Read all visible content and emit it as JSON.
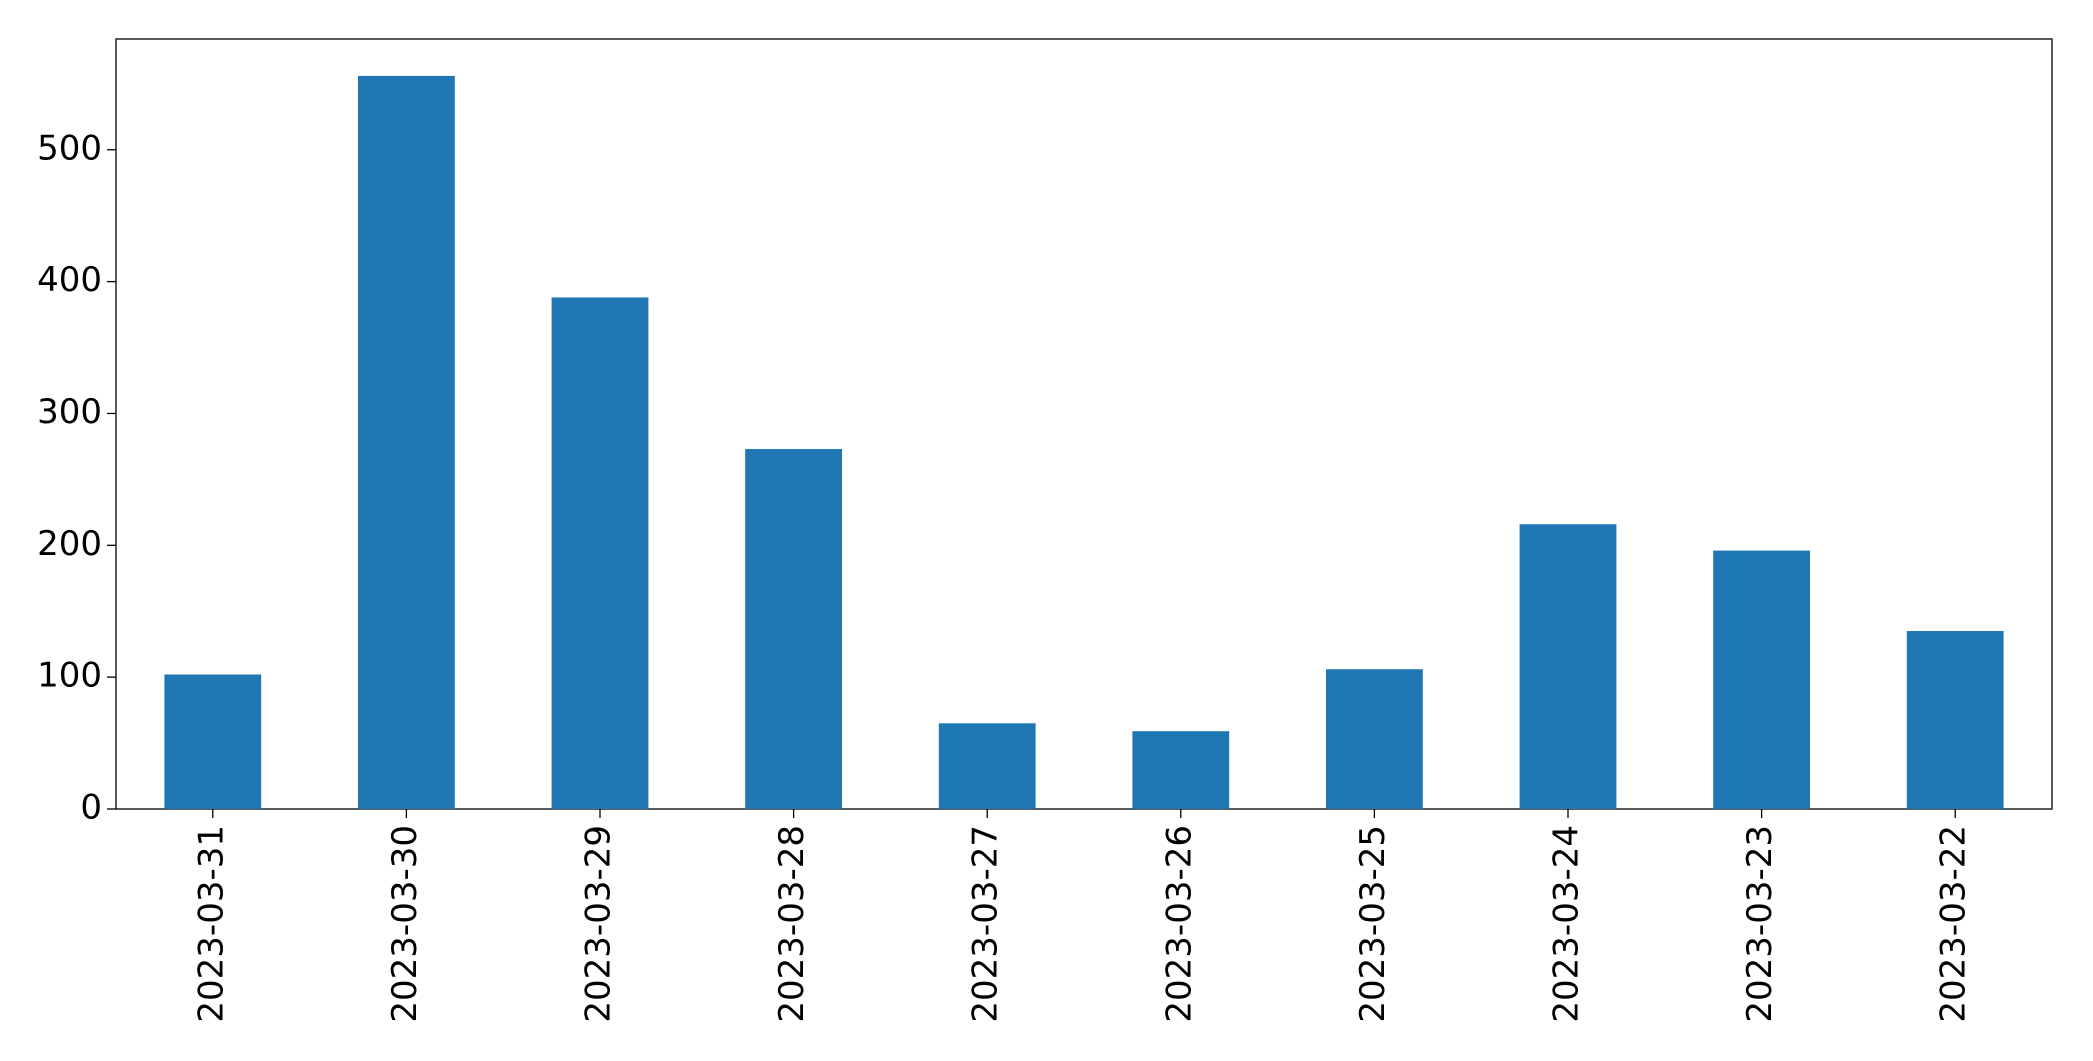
{
  "chart_data": {
    "type": "bar",
    "categories": [
      "2023-03-31",
      "2023-03-30",
      "2023-03-29",
      "2023-03-28",
      "2023-03-27",
      "2023-03-26",
      "2023-03-25",
      "2023-03-24",
      "2023-03-23",
      "2023-03-22"
    ],
    "values": [
      102,
      556,
      388,
      273,
      65,
      59,
      106,
      216,
      196,
      135
    ],
    "color": "#1f77b4",
    "ylim": [
      0,
      584
    ],
    "yticks": [
      0,
      100,
      200,
      300,
      400,
      500
    ],
    "grid": false
  }
}
